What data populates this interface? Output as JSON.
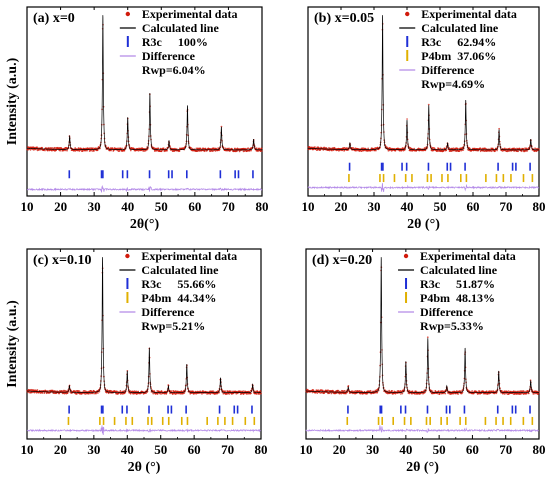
{
  "chart_data": [
    {
      "type": "line",
      "panel_label": "(a) x=0",
      "xlabel": "2θ(°)",
      "ylabel": "Intensity (a.u.)",
      "xlim": [
        10,
        80
      ],
      "xticks": [
        10,
        20,
        30,
        40,
        50,
        60,
        70,
        80
      ],
      "legend": [
        "Experimental data",
        "Calculated line"
      ],
      "phases": [
        {
          "name": "R3c",
          "fraction": "100%",
          "color": "#1f2fd6",
          "reflections": [
            22.6,
            32.2,
            32.6,
            38.5,
            39.9,
            46.5,
            52.2,
            53.2,
            57.6,
            67.6,
            72.0,
            73.0,
            77.3
          ]
        }
      ],
      "difference_label": "Difference",
      "rwp": "Rwp=6.04%",
      "peaks": [
        {
          "x": 22.7,
          "h": 0.1
        },
        {
          "x": 32.6,
          "h": 1.0
        },
        {
          "x": 40.0,
          "h": 0.24
        },
        {
          "x": 46.6,
          "h": 0.42
        },
        {
          "x": 52.3,
          "h": 0.07
        },
        {
          "x": 57.8,
          "h": 0.33
        },
        {
          "x": 67.9,
          "h": 0.17
        },
        {
          "x": 77.5,
          "h": 0.08
        }
      ]
    },
    {
      "type": "line",
      "panel_label": "(b) x=0.05",
      "xlabel": "2θ (°)",
      "ylabel": "",
      "xlim": [
        10,
        80
      ],
      "xticks": [
        10,
        20,
        30,
        40,
        50,
        60,
        70,
        80
      ],
      "legend": [
        "Experimental data",
        "Calculated line"
      ],
      "phases": [
        {
          "name": "R3c",
          "fraction": "62.94%",
          "color": "#1f2fd6",
          "reflections": [
            22.6,
            32.3,
            32.7,
            38.5,
            39.9,
            46.5,
            52.2,
            53.2,
            57.6,
            67.6,
            72.0,
            73.0,
            77.3
          ]
        },
        {
          "name": "P4bm",
          "fraction": "37.06%",
          "color": "#e0b000",
          "reflections": [
            22.4,
            31.8,
            32.9,
            36.2,
            39.6,
            41.5,
            46.2,
            47.3,
            50.6,
            52.4,
            56.3,
            58.0,
            63.9,
            67.1,
            69.2,
            71.5,
            75.3,
            78.0
          ]
        }
      ],
      "difference_label": "Difference",
      "rwp": "Rwp=4.69%",
      "peaks": [
        {
          "x": 22.7,
          "h": 0.05
        },
        {
          "x": 32.6,
          "h": 1.0
        },
        {
          "x": 40.0,
          "h": 0.22
        },
        {
          "x": 46.6,
          "h": 0.33
        },
        {
          "x": 52.3,
          "h": 0.05
        },
        {
          "x": 57.8,
          "h": 0.37
        },
        {
          "x": 67.9,
          "h": 0.15
        },
        {
          "x": 77.5,
          "h": 0.08
        }
      ]
    },
    {
      "type": "line",
      "panel_label": "(c) x=0.10",
      "xlabel": "2θ (°)",
      "ylabel": "Intensity (a.u.)",
      "xlim": [
        10,
        80
      ],
      "xticks": [
        10,
        20,
        30,
        40,
        50,
        60,
        70,
        80
      ],
      "legend": [
        "Experimental data",
        "Calculated line"
      ],
      "phases": [
        {
          "name": "R3c",
          "fraction": "55.66%",
          "color": "#1f2fd6",
          "reflections": [
            22.6,
            32.3,
            32.7,
            38.5,
            39.9,
            46.5,
            52.2,
            53.2,
            57.6,
            67.6,
            72.0,
            73.0,
            77.3
          ]
        },
        {
          "name": "P4bm",
          "fraction": "44.34%",
          "color": "#e0b000",
          "reflections": [
            22.4,
            31.8,
            32.9,
            36.2,
            39.6,
            41.5,
            46.2,
            47.3,
            50.6,
            52.4,
            56.3,
            58.0,
            63.9,
            67.1,
            69.2,
            71.5,
            75.3,
            78.0
          ]
        }
      ],
      "difference_label": "Difference",
      "rwp": "Rwp=5.21%",
      "peaks": [
        {
          "x": 22.7,
          "h": 0.05
        },
        {
          "x": 32.6,
          "h": 1.0
        },
        {
          "x": 40.0,
          "h": 0.16
        },
        {
          "x": 46.6,
          "h": 0.33
        },
        {
          "x": 52.3,
          "h": 0.05
        },
        {
          "x": 57.8,
          "h": 0.21
        },
        {
          "x": 67.9,
          "h": 0.11
        },
        {
          "x": 77.5,
          "h": 0.06
        }
      ]
    },
    {
      "type": "line",
      "panel_label": "(d) x=0.20",
      "xlabel": "2θ (°)",
      "ylabel": "",
      "xlim": [
        10,
        80
      ],
      "xticks": [
        10,
        20,
        30,
        40,
        50,
        60,
        70,
        80
      ],
      "legend": [
        "Experimental data",
        "Calculated line"
      ],
      "phases": [
        {
          "name": "R3c",
          "fraction": "51.87%",
          "color": "#1f2fd6",
          "reflections": [
            22.6,
            32.3,
            32.7,
            38.5,
            39.9,
            46.5,
            52.2,
            53.2,
            57.6,
            67.6,
            72.0,
            73.0,
            77.3
          ]
        },
        {
          "name": "P4bm",
          "fraction": "48.13%",
          "color": "#e0b000",
          "reflections": [
            22.4,
            31.8,
            32.9,
            36.2,
            39.6,
            41.5,
            46.2,
            47.3,
            50.6,
            52.4,
            56.3,
            58.0,
            63.9,
            67.1,
            69.2,
            71.5,
            75.3,
            78.0
          ]
        }
      ],
      "difference_label": "Difference",
      "rwp": "Rwp=5.33%",
      "peaks": [
        {
          "x": 22.7,
          "h": 0.04
        },
        {
          "x": 32.6,
          "h": 1.0
        },
        {
          "x": 40.0,
          "h": 0.23
        },
        {
          "x": 46.6,
          "h": 0.4
        },
        {
          "x": 52.3,
          "h": 0.05
        },
        {
          "x": 57.8,
          "h": 0.33
        },
        {
          "x": 67.9,
          "h": 0.16
        },
        {
          "x": 77.5,
          "h": 0.09
        }
      ]
    }
  ]
}
